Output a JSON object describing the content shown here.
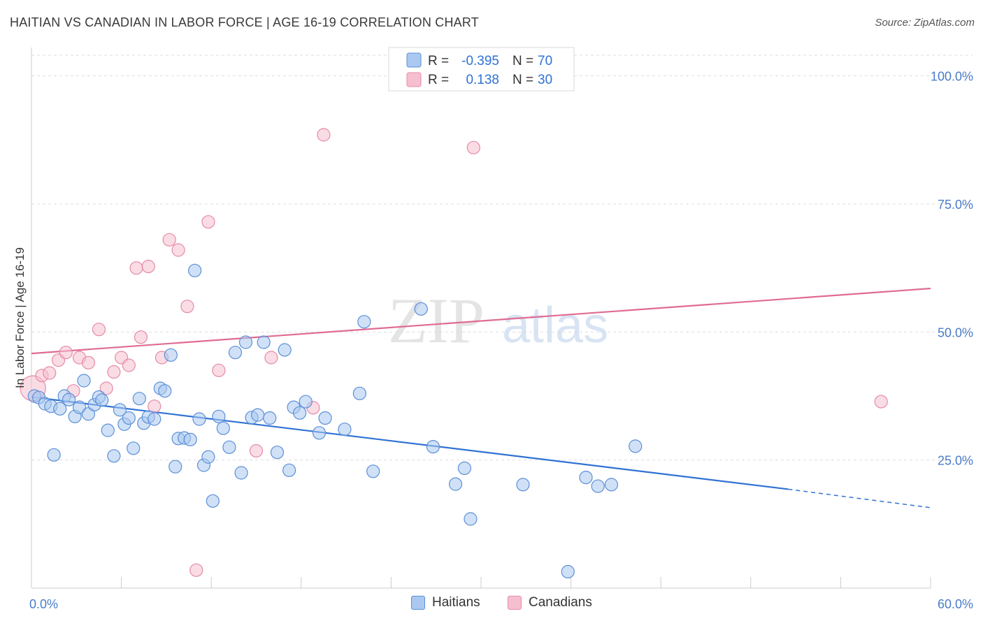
{
  "title": "HAITIAN VS CANADIAN IN LABOR FORCE | AGE 16-19 CORRELATION CHART",
  "source": "Source: ZipAtlas.com",
  "watermark": {
    "zip": "ZIP",
    "atlas": "atlas"
  },
  "colors": {
    "haitians_fill": "#aac8f0",
    "haitians_stroke": "#5b8fd6",
    "haitians_line": "#2f72d4",
    "canadians_fill": "#f6bfcf",
    "canadians_stroke": "#e68aa6",
    "canadians_line": "#e06b93",
    "axis_label": "#4a7cc9",
    "grid": "#dddddd"
  },
  "legend_top": {
    "rows": [
      {
        "r_label": "R =",
        "r_value": "-0.395",
        "n_label": "N =",
        "n_value": "70"
      },
      {
        "r_label": "R =",
        "r_value": "0.138",
        "n_label": "N =",
        "n_value": "30"
      }
    ]
  },
  "legend_bottom": {
    "haitians": "Haitians",
    "canadians": "Canadians"
  },
  "chart_data": {
    "type": "scatter",
    "xlabel": "",
    "ylabel": "In Labor Force | Age 16-19",
    "xlim": [
      0,
      60
    ],
    "ylim": [
      0,
      105
    ],
    "x_tick_labels": [
      {
        "value": 0,
        "label": "0.0%"
      },
      {
        "value": 60,
        "label": "60.0%"
      }
    ],
    "y_tick_labels": [
      {
        "value": 25,
        "label": "25.0%"
      },
      {
        "value": 50,
        "label": "50.0%"
      },
      {
        "value": 75,
        "label": "75.0%"
      },
      {
        "value": 100,
        "label": "100.0%"
      }
    ],
    "x_minor_ticks": [
      6,
      12,
      18,
      24,
      30,
      36,
      42,
      48,
      54
    ],
    "grid": true,
    "series": [
      {
        "name": "Haitians",
        "points": [
          [
            0.2,
            37.5
          ],
          [
            0.5,
            37.2
          ],
          [
            0.9,
            36.0
          ],
          [
            1.3,
            35.5
          ],
          [
            1.5,
            26.0
          ],
          [
            1.9,
            35.0
          ],
          [
            2.2,
            37.5
          ],
          [
            2.5,
            36.8
          ],
          [
            2.9,
            33.5
          ],
          [
            3.2,
            35.3
          ],
          [
            3.5,
            40.5
          ],
          [
            3.8,
            34.0
          ],
          [
            4.2,
            35.8
          ],
          [
            4.5,
            37.3
          ],
          [
            4.7,
            36.7
          ],
          [
            5.1,
            30.8
          ],
          [
            5.5,
            25.8
          ],
          [
            5.9,
            34.8
          ],
          [
            6.2,
            32.0
          ],
          [
            6.5,
            33.2
          ],
          [
            6.8,
            27.3
          ],
          [
            7.2,
            37.0
          ],
          [
            7.5,
            32.2
          ],
          [
            7.8,
            33.4
          ],
          [
            8.2,
            33.0
          ],
          [
            8.6,
            39.0
          ],
          [
            8.9,
            38.5
          ],
          [
            9.3,
            45.5
          ],
          [
            9.6,
            23.7
          ],
          [
            9.8,
            29.2
          ],
          [
            10.2,
            29.3
          ],
          [
            10.6,
            29.0
          ],
          [
            10.9,
            62.0
          ],
          [
            11.2,
            33.0
          ],
          [
            11.5,
            24.0
          ],
          [
            11.8,
            25.6
          ],
          [
            12.1,
            17.0
          ],
          [
            12.5,
            33.5
          ],
          [
            12.8,
            31.2
          ],
          [
            13.2,
            27.5
          ],
          [
            13.6,
            46.0
          ],
          [
            14.0,
            22.5
          ],
          [
            14.3,
            48.0
          ],
          [
            14.7,
            33.3
          ],
          [
            15.1,
            33.8
          ],
          [
            15.5,
            48.0
          ],
          [
            15.9,
            33.2
          ],
          [
            16.4,
            26.5
          ],
          [
            16.9,
            46.5
          ],
          [
            17.2,
            23.0
          ],
          [
            17.5,
            35.3
          ],
          [
            17.9,
            34.2
          ],
          [
            18.3,
            36.4
          ],
          [
            19.2,
            30.3
          ],
          [
            19.6,
            33.2
          ],
          [
            20.9,
            31.0
          ],
          [
            21.9,
            38.0
          ],
          [
            22.2,
            52.0
          ],
          [
            22.8,
            22.8
          ],
          [
            26.0,
            54.5
          ],
          [
            26.8,
            27.6
          ],
          [
            28.3,
            20.3
          ],
          [
            28.9,
            23.4
          ],
          [
            29.3,
            13.5
          ],
          [
            32.8,
            20.2
          ],
          [
            35.8,
            3.2
          ],
          [
            37.0,
            21.6
          ],
          [
            37.8,
            19.9
          ],
          [
            38.7,
            20.2
          ],
          [
            40.3,
            27.7
          ]
        ],
        "trend": {
          "x0": 0,
          "y0": 37.3,
          "x1": 50.5,
          "y1": 19.3,
          "dashed_to_x": 60,
          "dashed_to_y": 15.7
        }
      },
      {
        "name": "Canadians",
        "points": [
          [
            0.1,
            39.0
          ],
          [
            0.7,
            41.5
          ],
          [
            1.2,
            42.0
          ],
          [
            1.8,
            44.5
          ],
          [
            2.3,
            46.0
          ],
          [
            2.8,
            38.5
          ],
          [
            3.2,
            45.0
          ],
          [
            3.8,
            44.0
          ],
          [
            4.5,
            50.5
          ],
          [
            5.0,
            39.0
          ],
          [
            5.5,
            42.2
          ],
          [
            6.0,
            45.0
          ],
          [
            6.5,
            43.5
          ],
          [
            7.0,
            62.5
          ],
          [
            7.3,
            49.0
          ],
          [
            7.8,
            62.8
          ],
          [
            8.2,
            35.5
          ],
          [
            8.7,
            45.0
          ],
          [
            9.2,
            68.0
          ],
          [
            9.8,
            66.0
          ],
          [
            10.4,
            55.0
          ],
          [
            11.0,
            3.5
          ],
          [
            11.8,
            71.5
          ],
          [
            12.5,
            42.5
          ],
          [
            15.0,
            26.8
          ],
          [
            16.0,
            45.0
          ],
          [
            18.8,
            35.2
          ],
          [
            19.5,
            88.5
          ],
          [
            29.5,
            86.0
          ],
          [
            56.7,
            36.4
          ]
        ],
        "trend": {
          "x0": 0,
          "y0": 45.8,
          "x1": 60,
          "y1": 58.5
        }
      }
    ]
  }
}
